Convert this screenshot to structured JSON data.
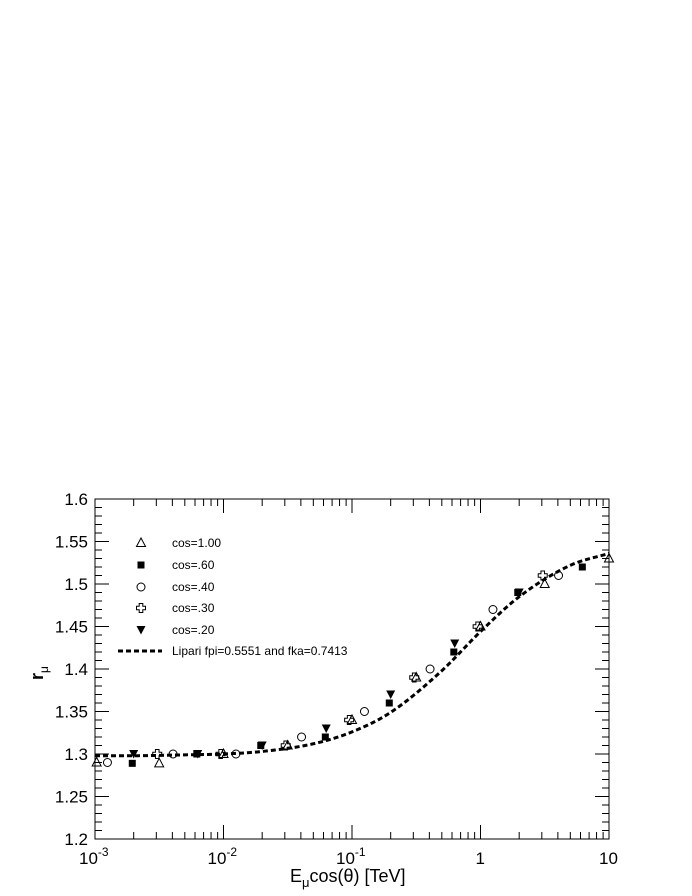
{
  "chart_data": {
    "type": "scatter",
    "x_scale": "log",
    "xlim": [
      0.001,
      10
    ],
    "ylim": [
      1.2,
      1.6
    ],
    "x_tick_values": [
      0.001,
      0.01,
      0.1,
      1,
      10
    ],
    "x_tick_labels": [
      {
        "base": "10",
        "exp": "-3"
      },
      {
        "base": "10",
        "exp": "-2"
      },
      {
        "base": "10",
        "exp": "-1"
      },
      {
        "base": "1",
        "exp": ""
      },
      {
        "base": "10",
        "exp": ""
      }
    ],
    "y_ticks": [
      "1.2",
      "1.25",
      "1.3",
      "1.35",
      "1.4",
      "1.45",
      "1.5",
      "1.55",
      "1.6"
    ],
    "xlabel": {
      "pre": "E",
      "sub": "μ",
      "post": "cos(θ) [TeV]"
    },
    "ylabel": {
      "main": "r",
      "sub": "μ"
    },
    "grid": false,
    "legend_position": "top-left",
    "series": [
      {
        "name": "cos=1.00",
        "marker": "triangle-open",
        "x": [
          0.00103,
          0.00316,
          0.01,
          0.0316,
          0.1,
          0.316,
          1,
          3.16,
          10
        ],
        "y": [
          1.29,
          1.289,
          1.3,
          1.31,
          1.34,
          1.39,
          1.45,
          1.5,
          1.53
        ]
      },
      {
        "name": "cos=.60",
        "marker": "square-filled",
        "x": [
          0.00195,
          0.0062,
          0.0195,
          0.062,
          0.195,
          0.62,
          1.95,
          6.2
        ],
        "y": [
          1.289,
          1.3,
          1.31,
          1.32,
          1.36,
          1.42,
          1.49,
          1.52
        ]
      },
      {
        "name": "cos=.40",
        "marker": "circle-open",
        "x": [
          0.00125,
          0.00405,
          0.0125,
          0.0405,
          0.125,
          0.405,
          1.25,
          4.05
        ],
        "y": [
          1.29,
          1.3,
          1.3,
          1.32,
          1.35,
          1.4,
          1.47,
          1.51
        ]
      },
      {
        "name": "cos=.30",
        "marker": "cross-open",
        "x": [
          0.00305,
          0.0095,
          0.0305,
          0.095,
          0.305,
          0.95,
          3.05
        ],
        "y": [
          1.3,
          1.3,
          1.31,
          1.34,
          1.39,
          1.45,
          1.51
        ]
      },
      {
        "name": "cos=.20",
        "marker": "triangle-down-filled",
        "x": [
          0.002,
          0.0063,
          0.02,
          0.063,
          0.2,
          0.63,
          2.0
        ],
        "y": [
          1.3,
          1.3,
          1.31,
          1.33,
          1.37,
          1.43,
          1.49
        ]
      }
    ],
    "fit_curve": {
      "name": "Lipari  fpi=0.5551 and fka=0.7413",
      "style": "dashed",
      "x": [
        0.001,
        0.002,
        0.005,
        0.01,
        0.02,
        0.05,
        0.1,
        0.2,
        0.5,
        1,
        2,
        5,
        10
      ],
      "y": [
        1.298,
        1.298,
        1.299,
        1.3,
        1.303,
        1.312,
        1.326,
        1.349,
        1.398,
        1.444,
        1.485,
        1.522,
        1.536
      ]
    }
  }
}
